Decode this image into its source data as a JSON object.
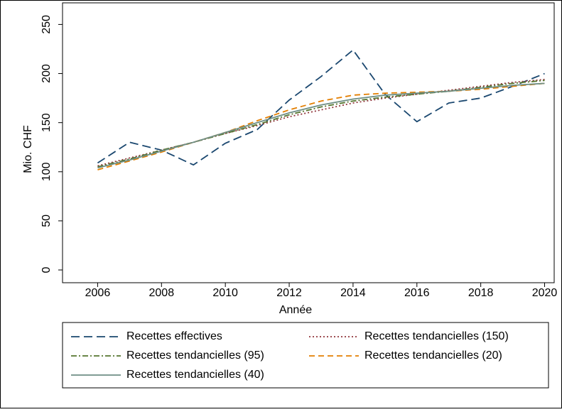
{
  "chart_data": {
    "type": "line",
    "x_label": "Année",
    "y_label": "Mio. CHF",
    "x": [
      2006,
      2007,
      2008,
      2009,
      2010,
      2011,
      2012,
      2013,
      2014,
      2015,
      2016,
      2017,
      2018,
      2019,
      2020
    ],
    "xlim": [
      2004.9,
      2020.3
    ],
    "xticks": [
      2006,
      2008,
      2010,
      2012,
      2014,
      2016,
      2018,
      2020
    ],
    "ylim": [
      -13,
      272
    ],
    "yticks": [
      0,
      50,
      100,
      150,
      200,
      250
    ],
    "legend": "bottom",
    "series": [
      {
        "name": "Recettes effectives",
        "color": "#1a476f",
        "dash": "12 6",
        "values": [
          109,
          130,
          122,
          107,
          129,
          143,
          173,
          197,
          224,
          179,
          151,
          170,
          175,
          187,
          200
        ]
      },
      {
        "name": "Recettes tendancielles (150)",
        "color": "#90353b",
        "dash": "2 3",
        "values": [
          106,
          114,
          122,
          130,
          139,
          147,
          156,
          163,
          170,
          175,
          179,
          183,
          187,
          191,
          194
        ]
      },
      {
        "name": "Recettes tendancielles (95)",
        "color": "#55752f",
        "dash": "8 3 2 3",
        "values": [
          105,
          113,
          122,
          130,
          139,
          148,
          158,
          166,
          172,
          176,
          179,
          182,
          186,
          190,
          193
        ]
      },
      {
        "name": "Recettes tendancielles (20)",
        "color": "#e37e00",
        "dash": "8 5",
        "values": [
          102,
          111,
          120,
          130,
          140,
          152,
          163,
          172,
          178,
          180,
          181,
          182,
          184,
          187,
          190
        ]
      },
      {
        "name": "Recettes tendancielles (40)",
        "color": "#6e8e84",
        "dash": "",
        "values": [
          104,
          112,
          121,
          130,
          140,
          150,
          160,
          168,
          174,
          178,
          180,
          182,
          185,
          188,
          190
        ]
      }
    ]
  }
}
